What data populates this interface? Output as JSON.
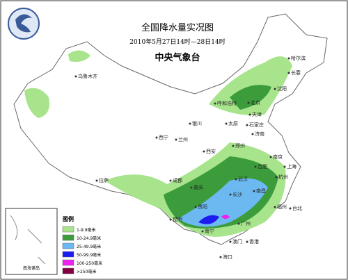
{
  "header": {
    "title": "全国降水量实况图",
    "period": "2010年5月27日14时—28日14时",
    "agency": "中央气象台"
  },
  "legend": {
    "title": "图例",
    "items": [
      {
        "label": "1-9.9毫米",
        "color": "#a8e48c"
      },
      {
        "label": "10-24.9毫米",
        "color": "#3c9c3c"
      },
      {
        "label": "25-49.9毫米",
        "color": "#6cb8f0"
      },
      {
        "label": "50-99.9毫米",
        "color": "#1c1cf0"
      },
      {
        "label": "100-250毫米",
        "color": "#f020f0"
      },
      {
        "label": ">250毫米",
        "color": "#800040"
      }
    ]
  },
  "inset": {
    "label": "南海诸岛"
  },
  "cities": [
    "乌鲁木齐",
    "哈尔滨",
    "长春",
    "沈阳",
    "呼和浩特",
    "北京",
    "天津",
    "银川",
    "太原",
    "石家庄",
    "济南",
    "西宁",
    "兰州",
    "西安",
    "郑州",
    "合肥",
    "南京",
    "上海",
    "杭州",
    "拉萨",
    "成都",
    "重庆",
    "武汉",
    "长沙",
    "南昌",
    "福州",
    "贵阳",
    "昆明",
    "南宁",
    "广州",
    "香港",
    "澳门",
    "海口",
    "台北"
  ]
}
